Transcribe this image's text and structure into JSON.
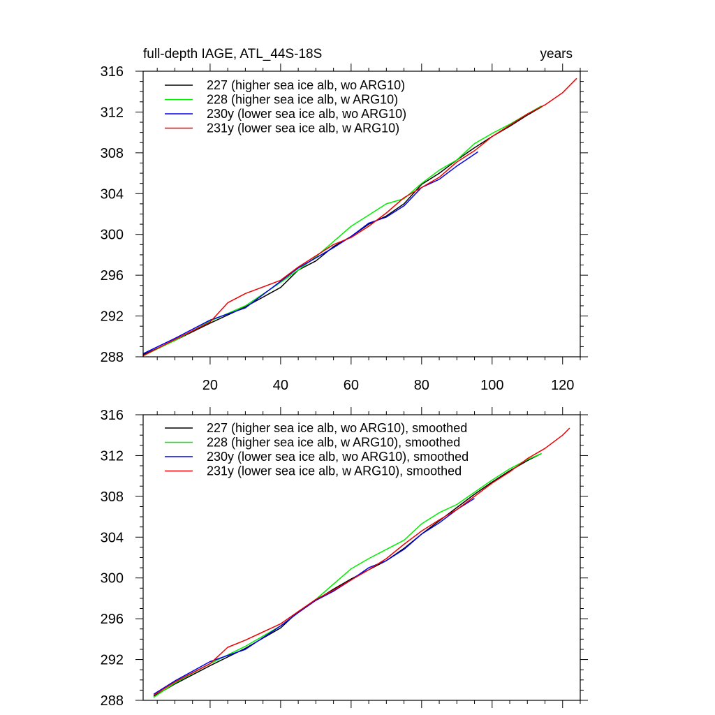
{
  "chart_data": [
    {
      "type": "line",
      "title": "full-depth IAGE, ATL_44S-18S",
      "units_label": "years",
      "xlim": [
        1,
        125
      ],
      "ylim": [
        288,
        316
      ],
      "xticks": [
        20,
        40,
        60,
        80,
        100,
        120
      ],
      "yticks": [
        288,
        292,
        296,
        300,
        304,
        308,
        312,
        316
      ],
      "series": [
        {
          "name": "227 (higher sea ice alb, wo ARG10)",
          "color": "#000000",
          "x": [
            1,
            10,
            20,
            30,
            40,
            45,
            50,
            55,
            60,
            65,
            70,
            75,
            80,
            85,
            90,
            95,
            100,
            105,
            110,
            114
          ],
          "y": [
            288.2,
            289.6,
            291.3,
            292.9,
            294.8,
            296.5,
            297.4,
            298.8,
            299.8,
            301.0,
            301.8,
            303.0,
            304.9,
            306.0,
            307.3,
            308.5,
            309.6,
            310.6,
            311.7,
            312.5
          ]
        },
        {
          "name": "228 (higher sea ice alb, w ARG10)",
          "color": "#00ee00",
          "x": [
            1,
            10,
            20,
            30,
            40,
            45,
            50,
            55,
            60,
            65,
            70,
            75,
            80,
            85,
            90,
            95,
            100,
            105,
            110,
            114
          ],
          "y": [
            288.1,
            289.6,
            291.5,
            293.0,
            295.3,
            296.5,
            297.8,
            299.3,
            300.8,
            301.9,
            303.0,
            303.5,
            305.0,
            306.3,
            307.3,
            308.9,
            309.9,
            310.8,
            311.8,
            312.6
          ]
        },
        {
          "name": "230y (lower sea ice alb, wo ARG10)",
          "color": "#0000ee",
          "x": [
            1,
            10,
            20,
            30,
            40,
            45,
            50,
            55,
            60,
            65,
            70,
            75,
            80,
            85,
            90,
            93,
            96
          ],
          "y": [
            288.3,
            289.8,
            291.6,
            292.8,
            295.4,
            296.7,
            297.7,
            298.7,
            299.8,
            301.1,
            301.7,
            302.8,
            304.6,
            305.4,
            306.7,
            307.4,
            308.1
          ]
        },
        {
          "name": "231y (lower sea ice alb, w ARG10)",
          "color": "#ee0000",
          "x": [
            1,
            10,
            20,
            25,
            30,
            40,
            45,
            50,
            55,
            60,
            65,
            70,
            75,
            80,
            85,
            90,
            95,
            100,
            105,
            110,
            115,
            120,
            124
          ],
          "y": [
            288.1,
            289.7,
            291.4,
            293.3,
            294.2,
            295.5,
            296.8,
            297.9,
            299.0,
            299.7,
            300.8,
            302.1,
            303.6,
            304.6,
            305.6,
            307.1,
            308.2,
            309.6,
            310.7,
            311.8,
            312.7,
            313.9,
            315.3
          ]
        }
      ]
    },
    {
      "type": "line",
      "title": "",
      "units_label": "",
      "xlim": [
        1,
        125
      ],
      "ylim": [
        288,
        316
      ],
      "xticks": [
        20,
        40,
        60,
        80,
        100,
        120
      ],
      "yticks": [
        288,
        292,
        296,
        300,
        304,
        308,
        312,
        316
      ],
      "series": [
        {
          "name": "227 (higher sea ice alb, wo ARG10), smoothed",
          "color": "#000000",
          "x": [
            4,
            10,
            20,
            30,
            40,
            45,
            50,
            55,
            60,
            65,
            70,
            75,
            80,
            85,
            90,
            95,
            100,
            105,
            110,
            114
          ],
          "y": [
            288.4,
            289.6,
            291.4,
            293.1,
            295.1,
            296.7,
            297.8,
            298.9,
            299.9,
            300.8,
            301.7,
            302.9,
            304.3,
            305.6,
            306.9,
            308.2,
            309.4,
            310.5,
            311.5,
            312.2
          ]
        },
        {
          "name": "228 (higher sea ice alb, w ARG10), smoothed",
          "color": "#00ee00",
          "x": [
            4,
            10,
            20,
            30,
            40,
            45,
            50,
            55,
            60,
            65,
            70,
            75,
            80,
            85,
            90,
            95,
            100,
            105,
            110,
            114
          ],
          "y": [
            288.3,
            289.7,
            291.6,
            293.3,
            295.3,
            296.6,
            297.9,
            299.4,
            300.9,
            301.9,
            302.8,
            303.7,
            305.3,
            306.4,
            307.2,
            308.4,
            309.6,
            310.7,
            311.6,
            312.2
          ]
        },
        {
          "name": "230y (lower sea ice alb, wo ARG10), smoothed",
          "color": "#0000ee",
          "x": [
            4,
            10,
            20,
            30,
            40,
            45,
            50,
            55,
            60,
            65,
            70,
            75,
            80,
            85,
            90,
            95
          ],
          "y": [
            288.6,
            289.9,
            291.8,
            293.0,
            295.3,
            296.6,
            297.8,
            298.7,
            299.8,
            301.0,
            301.7,
            302.8,
            304.3,
            305.4,
            306.7,
            307.8
          ]
        },
        {
          "name": "231y (lower sea ice alb, w ARG10), smoothed",
          "color": "#ee0000",
          "x": [
            4,
            10,
            20,
            25,
            30,
            40,
            45,
            50,
            55,
            60,
            65,
            70,
            75,
            80,
            85,
            90,
            95,
            100,
            105,
            110,
            115,
            120,
            122
          ],
          "y": [
            288.5,
            289.8,
            291.6,
            293.2,
            293.9,
            295.5,
            296.7,
            297.9,
            298.8,
            299.8,
            300.8,
            301.9,
            303.3,
            304.6,
            305.7,
            306.7,
            308.0,
            309.3,
            310.4,
            311.7,
            312.7,
            314.0,
            314.7
          ]
        }
      ]
    }
  ]
}
